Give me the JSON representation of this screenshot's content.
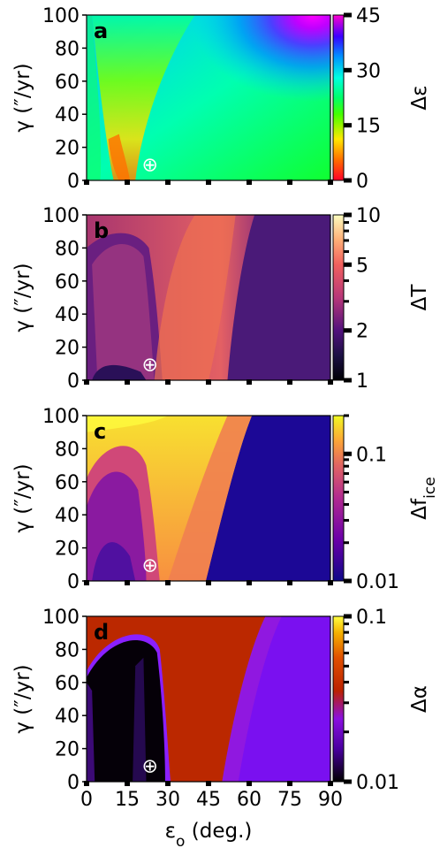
{
  "chart_data": [
    {
      "type": "heatmap",
      "panel_label": "a",
      "xlabel": "",
      "ylabel": "γ (″/yr)",
      "xlim": [
        0,
        90
      ],
      "ylim": [
        0,
        100
      ],
      "yticks": [
        0,
        20,
        40,
        60,
        80,
        100
      ],
      "colorbar": {
        "label": "Δε",
        "scale": "linear",
        "range": [
          0,
          45
        ],
        "ticks": [
          "0",
          "15",
          "30",
          "45"
        ],
        "colormap": "gist_rainbow"
      },
      "marker": {
        "symbol": "⊕",
        "x": 23.4,
        "y": 10
      }
    },
    {
      "type": "heatmap",
      "panel_label": "b",
      "xlabel": "",
      "ylabel": "γ (″/yr)",
      "xlim": [
        0,
        90
      ],
      "ylim": [
        0,
        100
      ],
      "yticks": [
        0,
        20,
        40,
        60,
        80,
        100
      ],
      "colorbar": {
        "label": "ΔT",
        "scale": "log",
        "range": [
          1,
          10
        ],
        "ticks": [
          "1",
          "2",
          "5",
          "10"
        ],
        "colormap": "magma"
      },
      "marker": {
        "symbol": "⊕",
        "x": 23.4,
        "y": 10
      }
    },
    {
      "type": "heatmap",
      "panel_label": "c",
      "xlabel": "",
      "ylabel": "γ (″/yr)",
      "xlim": [
        0,
        90
      ],
      "ylim": [
        0,
        100
      ],
      "yticks": [
        0,
        20,
        40,
        60,
        80,
        100
      ],
      "colorbar": {
        "label": "Δf",
        "label_sub": "ice",
        "scale": "log",
        "range": [
          0.01,
          0.2
        ],
        "ticks": [
          "0.01",
          "0.1"
        ],
        "colormap": "plasma"
      },
      "marker": {
        "symbol": "⊕",
        "x": 23.4,
        "y": 10
      }
    },
    {
      "type": "heatmap",
      "panel_label": "d",
      "xlabel": "εo (deg.)",
      "ylabel": "γ (″/yr)",
      "xlim": [
        0,
        90
      ],
      "ylim": [
        0,
        100
      ],
      "xticks": [
        0,
        15,
        30,
        45,
        60,
        75,
        90
      ],
      "yticks": [
        0,
        20,
        40,
        60,
        80,
        100
      ],
      "colorbar": {
        "label": "Δα",
        "scale": "log",
        "range": [
          0.01,
          0.1
        ],
        "ticks": [
          "0.01",
          "0.1"
        ],
        "colormap": "gnuplot"
      },
      "marker": {
        "symbol": "⊕",
        "x": 23.4,
        "y": 10
      }
    }
  ],
  "xlabel_main": "ε",
  "xlabel_sub": "o",
  "xlabel_rest": " (deg.)"
}
